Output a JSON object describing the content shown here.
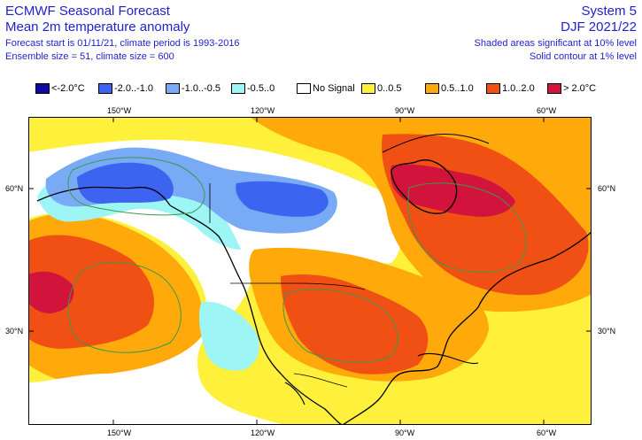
{
  "header": {
    "title_line1": "ECMWF Seasonal Forecast",
    "title_line2": "Mean 2m temperature anomaly",
    "info_line1": "Forecast start is 01/11/21, climate period is 1993-2016",
    "info_line2": "Ensemble size = 51, climate size = 600",
    "system": "System 5",
    "season": "DJF 2021/22",
    "sig_shaded": "Shaded areas significant at 10% level",
    "sig_contour": "Solid contour at 1% level"
  },
  "legend": [
    {
      "label": "<-2.0°C",
      "color": "#0a0aa0"
    },
    {
      "label": "-2.0..-1.0",
      "color": "#3c64f0"
    },
    {
      "label": "-1.0..-0.5",
      "color": "#78aaf5"
    },
    {
      "label": "-0.5..0",
      "color": "#9ef5f5"
    },
    {
      "label": "No Signal",
      "color": "#ffffff"
    },
    {
      "label": "0..0.5",
      "color": "#fff03c"
    },
    {
      "label": "0.5..1.0",
      "color": "#ffaa0a"
    },
    {
      "label": "1.0..2.0",
      "color": "#f05014"
    },
    {
      "label": "> 2.0°C",
      "color": "#d2143c"
    }
  ],
  "axes": {
    "lon_labels": [
      "150°W",
      "120°W",
      "90°W",
      "60°W"
    ],
    "lat_labels": [
      "60°N",
      "30°N"
    ]
  }
}
